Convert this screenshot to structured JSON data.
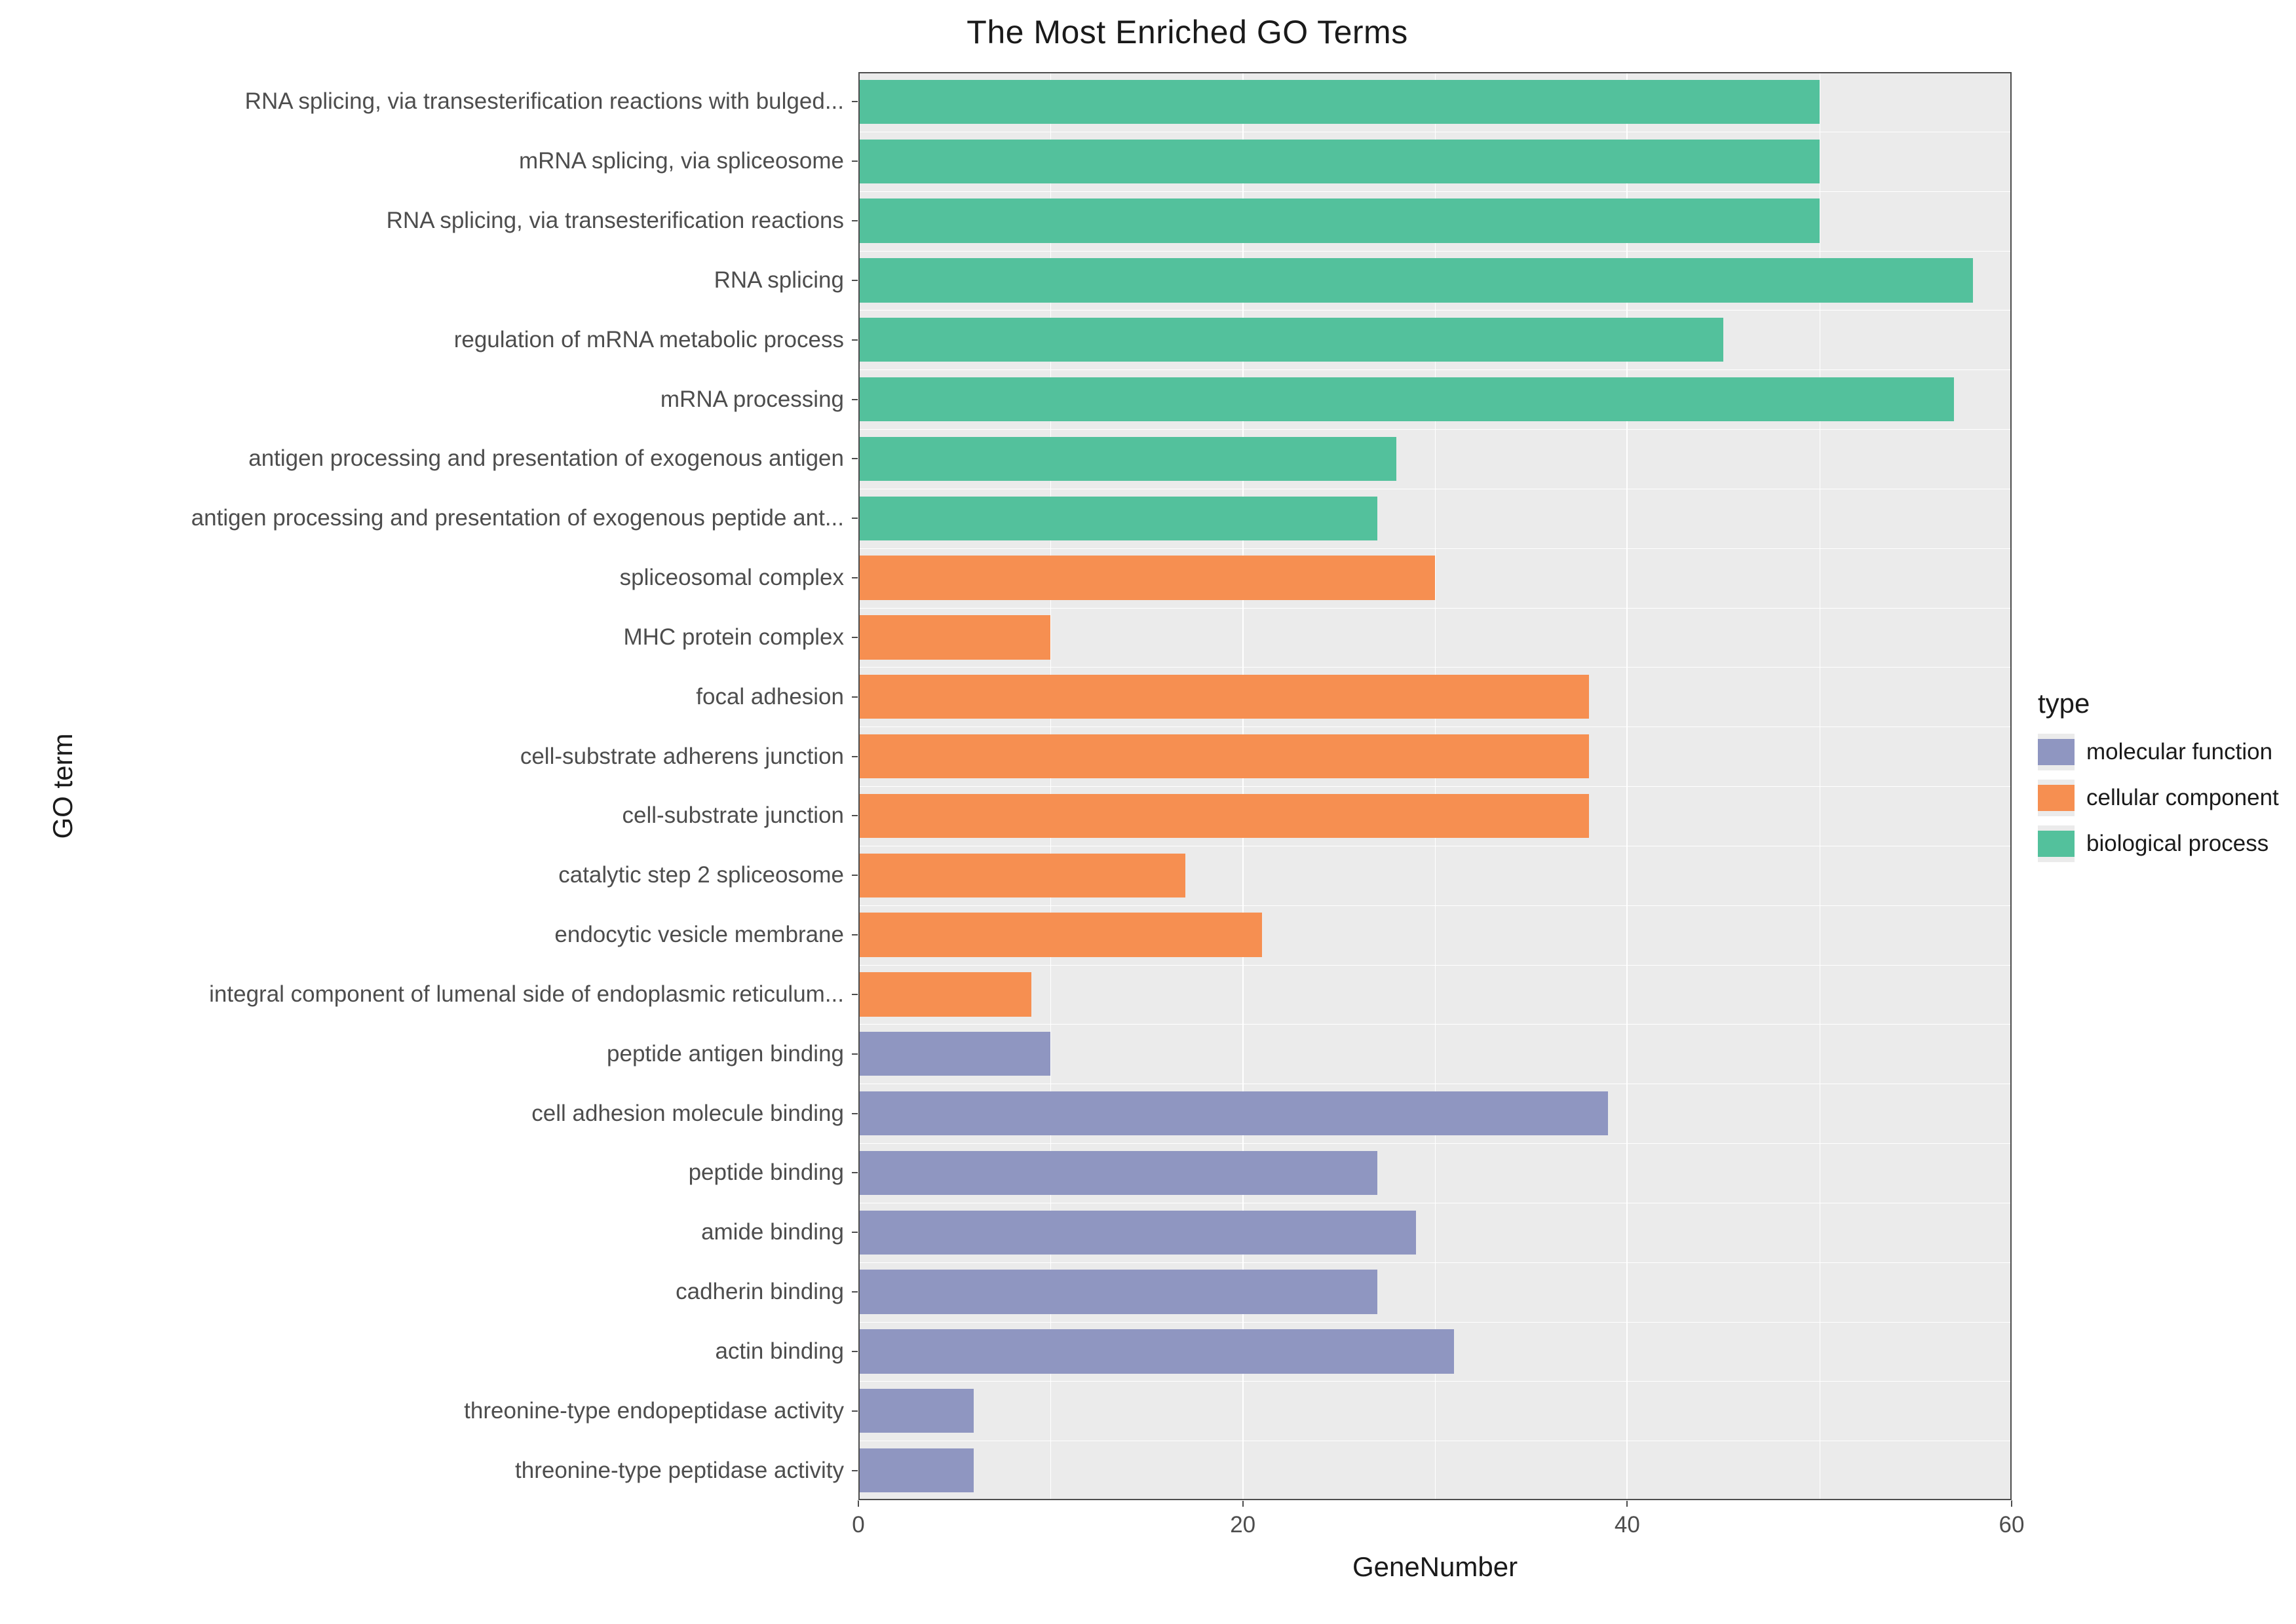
{
  "chart": {
    "type": "bar-horizontal",
    "title": "The Most Enriched GO Terms",
    "title_fontsize": 50,
    "xlabel": "GeneNumber",
    "ylabel": "GO term",
    "axis_label_fontsize": 42,
    "tick_fontsize": 35,
    "tick_color": "#4d4d4d",
    "panel_bg": "#ebebeb",
    "grid_color": "#ffffff",
    "panel_border_color": "#4d4d4d",
    "xlim": [
      0,
      60
    ],
    "xtick_step": 20,
    "xticks": [
      0,
      20,
      40,
      60
    ],
    "xminor_step": 10,
    "bar_fill_ratio": 0.74,
    "colors": {
      "molecular function": "#8f96c1",
      "cellular component": "#f68f51",
      "biological process": "#53c19c"
    },
    "legend": {
      "title": "type",
      "position": "right",
      "items": [
        {
          "label": "molecular function",
          "color": "#8f96c1"
        },
        {
          "label": "cellular component",
          "color": "#f68f51"
        },
        {
          "label": "biological process",
          "color": "#53c19c"
        }
      ]
    },
    "bars": [
      {
        "label": "RNA splicing, via transesterification reactions with bulged...",
        "value": 50,
        "type": "biological process"
      },
      {
        "label": "mRNA splicing, via spliceosome",
        "value": 50,
        "type": "biological process"
      },
      {
        "label": "RNA splicing, via transesterification reactions",
        "value": 50,
        "type": "biological process"
      },
      {
        "label": "RNA splicing",
        "value": 58,
        "type": "biological process"
      },
      {
        "label": "regulation of mRNA metabolic process",
        "value": 45,
        "type": "biological process"
      },
      {
        "label": "mRNA processing",
        "value": 57,
        "type": "biological process"
      },
      {
        "label": "antigen processing and presentation of exogenous antigen",
        "value": 28,
        "type": "biological process"
      },
      {
        "label": "antigen processing and presentation of exogenous peptide ant...",
        "value": 27,
        "type": "biological process"
      },
      {
        "label": "spliceosomal complex",
        "value": 30,
        "type": "cellular component"
      },
      {
        "label": "MHC protein complex",
        "value": 10,
        "type": "cellular component"
      },
      {
        "label": "focal adhesion",
        "value": 38,
        "type": "cellular component"
      },
      {
        "label": "cell-substrate adherens junction",
        "value": 38,
        "type": "cellular component"
      },
      {
        "label": "cell-substrate junction",
        "value": 38,
        "type": "cellular component"
      },
      {
        "label": "catalytic step 2 spliceosome",
        "value": 17,
        "type": "cellular component"
      },
      {
        "label": "endocytic vesicle membrane",
        "value": 21,
        "type": "cellular component"
      },
      {
        "label": "integral component of lumenal side of endoplasmic reticulum...",
        "value": 9,
        "type": "cellular component"
      },
      {
        "label": "peptide antigen binding",
        "value": 10,
        "type": "molecular function"
      },
      {
        "label": "cell adhesion molecule binding",
        "value": 39,
        "type": "molecular function"
      },
      {
        "label": "peptide binding",
        "value": 27,
        "type": "molecular function"
      },
      {
        "label": "amide binding",
        "value": 29,
        "type": "molecular function"
      },
      {
        "label": "cadherin binding",
        "value": 27,
        "type": "molecular function"
      },
      {
        "label": "actin binding",
        "value": 31,
        "type": "molecular function"
      },
      {
        "label": "threonine-type endopeptidase activity",
        "value": 6,
        "type": "molecular function"
      },
      {
        "label": "threonine-type peptidase activity",
        "value": 6,
        "type": "molecular function"
      }
    ]
  }
}
